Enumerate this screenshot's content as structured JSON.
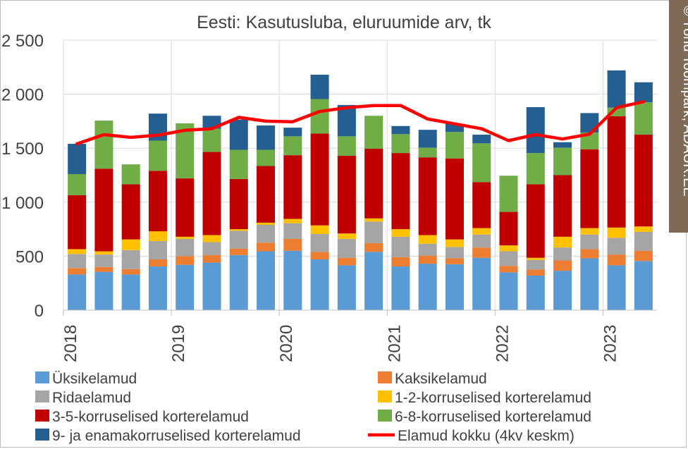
{
  "chart_data": {
    "type": "bar",
    "stacked": true,
    "title": "Eesti: Kasutusluba, eluruumide arv, tk",
    "watermark": "© Tõnu Toompark, ADAUR.EE",
    "ylim": [
      0,
      2500
    ],
    "y_ticks": [
      0,
      500,
      1000,
      1500,
      2000,
      2500
    ],
    "y_tick_labels": [
      "0",
      "500",
      "1 000",
      "1 500",
      "2 000",
      "2 500"
    ],
    "grid": "horizontal",
    "legend_position": "bottom",
    "year_labels": [
      "2018",
      "2019",
      "2020",
      "2021",
      "2022",
      "2023"
    ],
    "categories": [
      "2018Q1",
      "2018Q2",
      "2018Q3",
      "2018Q4",
      "2019Q1",
      "2019Q2",
      "2019Q3",
      "2019Q4",
      "2020Q1",
      "2020Q2",
      "2020Q3",
      "2020Q4",
      "2021Q1",
      "2021Q2",
      "2021Q3",
      "2021Q4",
      "2022Q1",
      "2022Q2",
      "2022Q3",
      "2022Q4",
      "2023Q1",
      "2023Q2"
    ],
    "series": [
      {
        "name": "Üksikelamud",
        "color": "#5b9bd5",
        "values": [
          330,
          355,
          330,
          405,
          420,
          440,
          510,
          545,
          550,
          470,
          415,
          540,
          405,
          430,
          425,
          485,
          350,
          320,
          365,
          480,
          415,
          455
        ]
      },
      {
        "name": "Kaksikelamud",
        "color": "#ed7d31",
        "values": [
          60,
          45,
          50,
          65,
          80,
          70,
          60,
          80,
          110,
          70,
          70,
          80,
          85,
          75,
          55,
          95,
          60,
          55,
          95,
          85,
          100,
          95
        ]
      },
      {
        "name": "Ridaelamud",
        "color": "#a5a5a5",
        "values": [
          130,
          115,
          175,
          170,
          160,
          120,
          165,
          165,
          145,
          165,
          175,
          200,
          190,
          110,
          105,
          120,
          135,
          90,
          120,
          135,
          155,
          175
        ]
      },
      {
        "name": "1-2-korruselised korterelamud",
        "color": "#ffc000",
        "values": [
          45,
          30,
          100,
          90,
          20,
          65,
          15,
          20,
          40,
          80,
          50,
          30,
          70,
          80,
          70,
          60,
          55,
          20,
          100,
          60,
          95,
          50
        ]
      },
      {
        "name": "3-5-korruselised korterelamud",
        "color": "#c00000",
        "values": [
          500,
          765,
          510,
          560,
          540,
          770,
          465,
          525,
          590,
          850,
          720,
          645,
          705,
          720,
          750,
          425,
          310,
          680,
          570,
          730,
          1030,
          850
        ]
      },
      {
        "name": "6-8-korruselised korterelamud",
        "color": "#70ad47",
        "values": [
          195,
          445,
          185,
          280,
          510,
          215,
          270,
          150,
          175,
          320,
          180,
          305,
          175,
          90,
          245,
          360,
          335,
          290,
          255,
          155,
          80,
          300
        ]
      },
      {
        "name": "9- ja enamakorruselised korterelamud",
        "color": "#255e91",
        "values": [
          280,
          0,
          0,
          250,
          0,
          120,
          280,
          225,
          80,
          225,
          290,
          0,
          75,
          165,
          75,
          80,
          0,
          425,
          50,
          180,
          345,
          185
        ]
      }
    ],
    "line_series": {
      "name": "Elamud kokku (4kv keskm)",
      "color": "#ff0000",
      "values": [
        1540,
        1625,
        1600,
        1620,
        1665,
        1680,
        1785,
        1750,
        1745,
        1840,
        1875,
        1895,
        1895,
        1770,
        1725,
        1680,
        1570,
        1625,
        1585,
        1630,
        1875,
        1930
      ]
    }
  }
}
